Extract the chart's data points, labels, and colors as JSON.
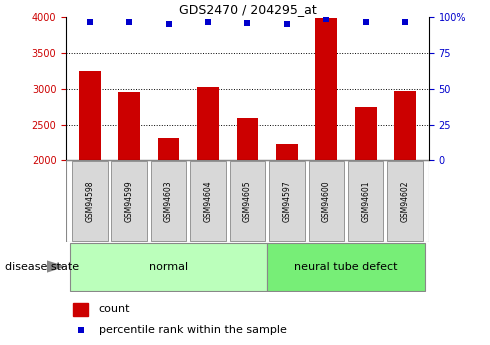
{
  "title": "GDS2470 / 204295_at",
  "samples": [
    "GSM94598",
    "GSM94599",
    "GSM94603",
    "GSM94604",
    "GSM94605",
    "GSM94597",
    "GSM94600",
    "GSM94601",
    "GSM94602"
  ],
  "counts": [
    3250,
    2950,
    2320,
    3020,
    2590,
    2230,
    3990,
    2740,
    2970
  ],
  "percentile_ranks": [
    97,
    97,
    95,
    97,
    96,
    95,
    99,
    97,
    97
  ],
  "ylim_left": [
    2000,
    4000
  ],
  "ylim_right": [
    0,
    100
  ],
  "yticks_left": [
    2000,
    2500,
    3000,
    3500,
    4000
  ],
  "yticks_right": [
    0,
    25,
    50,
    75,
    100
  ],
  "bar_color": "#cc0000",
  "dot_color": "#0000cc",
  "groups": [
    {
      "label": "normal",
      "start": 0,
      "end": 5
    },
    {
      "label": "neural tube defect",
      "start": 5,
      "end": 9
    }
  ],
  "group_color_normal": "#bbffbb",
  "group_color_defect": "#77ee77",
  "disease_state_label": "disease state",
  "legend_count_label": "count",
  "legend_pct_label": "percentile rank within the sample",
  "grid_color": "#000000",
  "tick_box_color": "#d8d8d8",
  "tick_box_edge": "#888888"
}
